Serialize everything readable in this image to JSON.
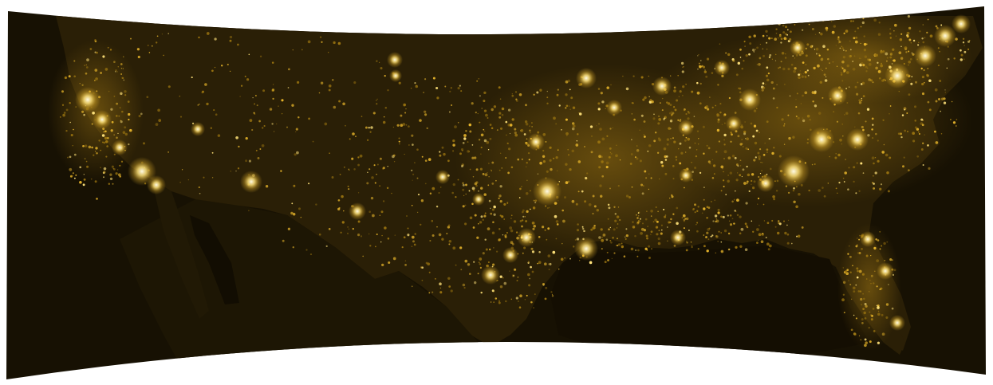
{
  "map": {
    "colors": {
      "page_background": "#ffffff",
      "ocean": "#171103",
      "land": "#2a1f06",
      "land_dark": "#1d1604",
      "light_dim": "#9a7410",
      "light_mid": "#e2b12a",
      "light_bright": "#ffe27a",
      "light_core": "#fffbe8"
    }
  }
}
